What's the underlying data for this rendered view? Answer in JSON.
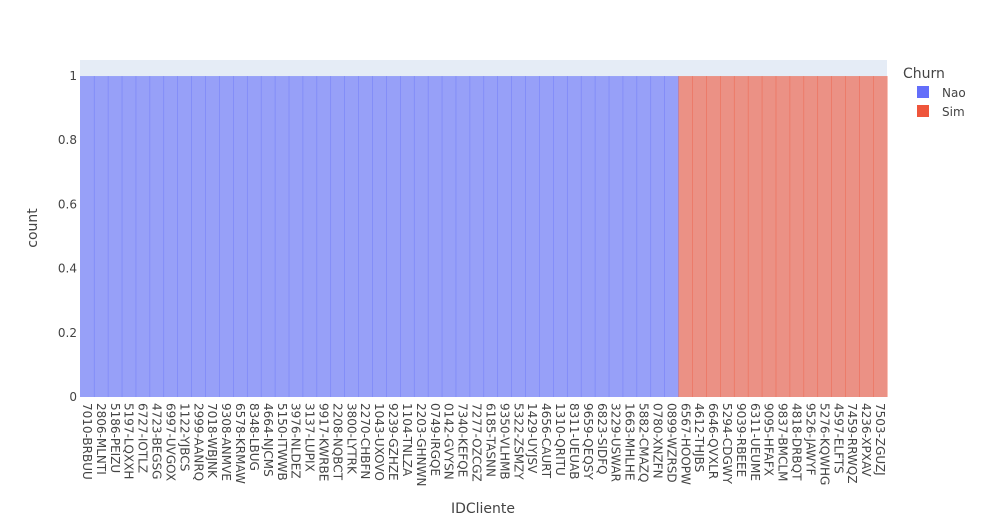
{
  "chart_data": {
    "type": "bar",
    "barmode": "stack",
    "xlabel": "IDCliente",
    "ylabel": "count",
    "ylim": [
      0,
      1.05
    ],
    "yticks": [
      "0",
      "0.2",
      "0.4",
      "0.6",
      "0.8",
      "1"
    ],
    "grid": false,
    "legend": {
      "title": "Churn",
      "placement": "top-right"
    },
    "categories": [
      "7010-BRBUU",
      "2806-MLNTI",
      "5186-PEIZU",
      "5197-LQXXH",
      "6727-IOTLZ",
      "4723-BEGSG",
      "6997-UVGOX",
      "1122-YJBCS",
      "2999-AANRQ",
      "7018-WBJNK",
      "9308-ANMVE",
      "6578-KRMAW",
      "8348-LBUG",
      "4664-NJCMS",
      "5150-ITWWB",
      "3976-NLDEZ",
      "3137-LUPIX",
      "9917-KWRBE",
      "2208-NQBCT",
      "3800-LYTRK",
      "2270-CHBFN",
      "1043-UXOVO",
      "9239-GZHZE",
      "1104-TNLZA",
      "2203-GHNWN",
      "0749-IRGQE",
      "0142-GVYSN",
      "7340-KEFQE",
      "7277-OZCGZ",
      "6185-TASNN",
      "9350-VLHMB",
      "5322-ZSMZY",
      "1429-UYJSV",
      "4656-CAURT",
      "1310-QRITU",
      "8311-UEUAB",
      "9659-QEQSY",
      "6823-SIDFQ",
      "3229-USWAR",
      "1663-MHLHE",
      "5882-CMAZQ",
      "0780-XNZFN",
      "0899-WZRSD",
      "6567-HOOPW",
      "4612-THJBS",
      "6646-QVXLR",
      "5294-CDGWY",
      "9039-RBEEE",
      "6311-UEUME",
      "9095-HFAFX",
      "9837-BMCLM",
      "4818-DRBQT",
      "9526-JAWYF",
      "5276-KQWHG",
      "4597-ELFTS",
      "7459-RRWQZ",
      "4236-XPXAV",
      "7503-ZGUZJ"
    ],
    "series": [
      {
        "name": "Nao",
        "color": "#636efa",
        "values": [
          1,
          1,
          1,
          1,
          1,
          1,
          1,
          1,
          1,
          1,
          1,
          1,
          1,
          1,
          1,
          1,
          1,
          1,
          1,
          1,
          1,
          1,
          1,
          1,
          1,
          1,
          1,
          1,
          1,
          1,
          1,
          1,
          1,
          1,
          1,
          1,
          1,
          1,
          1,
          1,
          1,
          1,
          1,
          0,
          0,
          0,
          0,
          0,
          0,
          0,
          0,
          0,
          0,
          0,
          0,
          0,
          0,
          0
        ]
      },
      {
        "name": "Sim",
        "color": "#ef553b",
        "values": [
          0,
          0,
          0,
          0,
          0,
          0,
          0,
          0,
          0,
          0,
          0,
          0,
          0,
          0,
          0,
          0,
          0,
          0,
          0,
          0,
          0,
          0,
          0,
          0,
          0,
          0,
          0,
          0,
          0,
          0,
          0,
          0,
          0,
          0,
          0,
          0,
          0,
          0,
          0,
          0,
          0,
          0,
          0,
          1,
          1,
          1,
          1,
          1,
          1,
          1,
          1,
          1,
          1,
          1,
          1,
          1,
          1,
          1
        ]
      }
    ]
  },
  "colors": {
    "plot_bg": "#e5ecf6",
    "text": "#444444"
  }
}
